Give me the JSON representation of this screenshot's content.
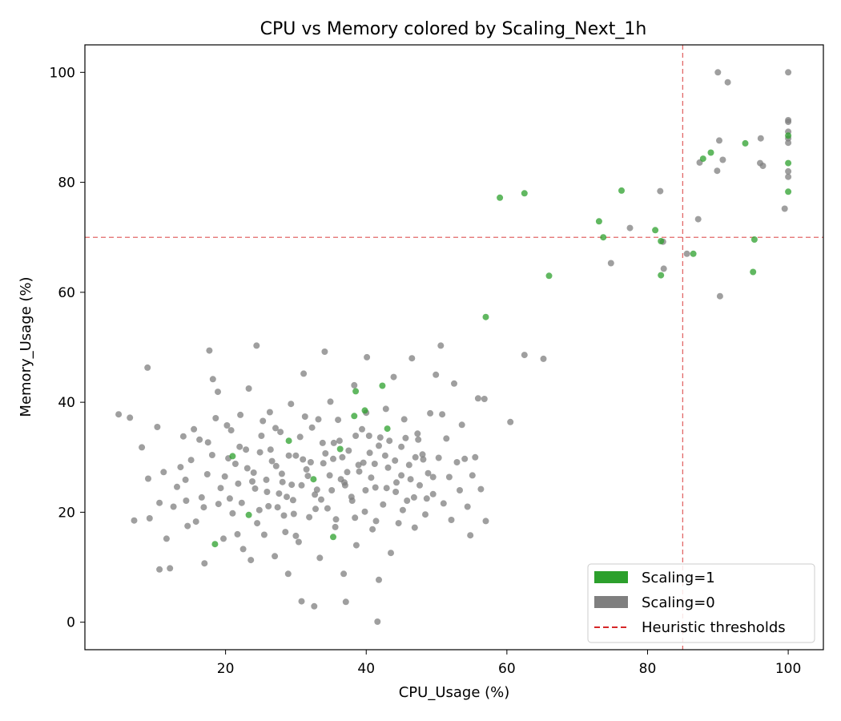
{
  "chart_data": {
    "type": "scatter",
    "title": "CPU vs Memory colored by Scaling_Next_1h",
    "xlabel": "CPU_Usage (%)",
    "ylabel": "Memory_Usage (%)",
    "xlim": [
      0,
      105
    ],
    "ylim": [
      -5,
      105
    ],
    "x_ticks": [
      20,
      40,
      60,
      80,
      100
    ],
    "y_ticks": [
      0,
      20,
      40,
      60,
      80,
      100
    ],
    "grid": false,
    "legend_position": "lower-right",
    "thresholds": {
      "cpu": 85,
      "memory": 70,
      "color": "#d62728",
      "style": "dashed"
    },
    "series": [
      {
        "name": "Scaling=1",
        "color": "#2ca02c",
        "points": [
          [
            59.0,
            77.2
          ],
          [
            62.5,
            78.0
          ],
          [
            76.3,
            78.5
          ],
          [
            73.1,
            72.9
          ],
          [
            73.7,
            70.0
          ],
          [
            81.1,
            71.3
          ],
          [
            81.9,
            69.3
          ],
          [
            66.0,
            63.0
          ],
          [
            81.9,
            63.1
          ],
          [
            86.5,
            67.0
          ],
          [
            57.0,
            55.5
          ],
          [
            87.9,
            84.3
          ],
          [
            89.0,
            85.4
          ],
          [
            93.9,
            87.1
          ],
          [
            95.0,
            63.7
          ],
          [
            95.2,
            69.6
          ],
          [
            100,
            88.5
          ],
          [
            100,
            83.5
          ],
          [
            100,
            78.3
          ],
          [
            39.8,
            38.5
          ],
          [
            42.3,
            43.0
          ],
          [
            43.0,
            35.2
          ],
          [
            38.5,
            42.0
          ],
          [
            29.0,
            33.0
          ],
          [
            21.0,
            30.2
          ],
          [
            38.3,
            37.5
          ],
          [
            36.3,
            31.5
          ],
          [
            32.5,
            26.0
          ],
          [
            23.3,
            19.5
          ],
          [
            18.5,
            14.2
          ],
          [
            35.3,
            15.5
          ]
        ]
      },
      {
        "name": "Scaling=0",
        "color": "#7f7f7f",
        "points": [
          [
            90.0,
            100.0
          ],
          [
            91.4,
            98.2
          ],
          [
            100,
            100.0
          ],
          [
            100,
            91.3
          ],
          [
            100,
            91.0
          ],
          [
            100,
            89.2
          ],
          [
            100,
            88.0
          ],
          [
            100,
            87.2
          ],
          [
            100,
            82.0
          ],
          [
            100,
            81.0
          ],
          [
            90.2,
            87.6
          ],
          [
            90.7,
            84.1
          ],
          [
            87.4,
            83.6
          ],
          [
            96.1,
            88.0
          ],
          [
            96.0,
            83.5
          ],
          [
            96.4,
            83.0
          ],
          [
            89.9,
            82.1
          ],
          [
            99.5,
            75.2
          ],
          [
            81.8,
            78.4
          ],
          [
            87.2,
            73.3
          ],
          [
            77.5,
            71.7
          ],
          [
            82.2,
            69.2
          ],
          [
            74.8,
            65.3
          ],
          [
            82.3,
            64.3
          ],
          [
            85.6,
            67.0
          ],
          [
            90.3,
            59.3
          ],
          [
            62.5,
            48.6
          ],
          [
            65.2,
            47.9
          ],
          [
            60.5,
            36.4
          ],
          [
            56.8,
            40.6
          ],
          [
            4.8,
            37.8
          ],
          [
            6.4,
            37.2
          ],
          [
            7.0,
            18.5
          ],
          [
            8.1,
            31.8
          ],
          [
            8.9,
            46.3
          ],
          [
            9.0,
            26.1
          ],
          [
            9.2,
            18.9
          ],
          [
            10.3,
            35.5
          ],
          [
            10.6,
            9.6
          ],
          [
            10.6,
            21.7
          ],
          [
            11.2,
            27.3
          ],
          [
            11.6,
            15.2
          ],
          [
            12.1,
            9.8
          ],
          [
            12.6,
            21.0
          ],
          [
            13.1,
            24.6
          ],
          [
            13.6,
            28.2
          ],
          [
            14.0,
            33.8
          ],
          [
            14.4,
            22.1
          ],
          [
            14.6,
            17.5
          ],
          [
            15.1,
            29.5
          ],
          [
            15.8,
            18.3
          ],
          [
            16.3,
            33.2
          ],
          [
            16.6,
            22.7
          ],
          [
            17.0,
            10.7
          ],
          [
            17.4,
            26.9
          ],
          [
            17.7,
            49.4
          ],
          [
            18.2,
            44.2
          ],
          [
            18.6,
            37.1
          ],
          [
            18.9,
            41.9
          ],
          [
            19.3,
            24.4
          ],
          [
            19.7,
            15.2
          ],
          [
            20.2,
            35.8
          ],
          [
            20.6,
            22.5
          ],
          [
            21.0,
            19.8
          ],
          [
            21.4,
            28.8
          ],
          [
            21.8,
            25.2
          ],
          [
            22.1,
            37.7
          ],
          [
            22.5,
            13.3
          ],
          [
            22.9,
            31.4
          ],
          [
            23.3,
            42.5
          ],
          [
            23.6,
            11.3
          ],
          [
            24.0,
            27.2
          ],
          [
            24.4,
            50.3
          ],
          [
            24.8,
            20.4
          ],
          [
            25.1,
            33.9
          ],
          [
            25.5,
            15.9
          ],
          [
            25.9,
            23.7
          ],
          [
            26.3,
            38.2
          ],
          [
            26.6,
            29.3
          ],
          [
            27.0,
            12.0
          ],
          [
            27.4,
            20.9
          ],
          [
            27.8,
            34.6
          ],
          [
            28.1,
            25.5
          ],
          [
            28.5,
            16.4
          ],
          [
            28.9,
            8.8
          ],
          [
            29.3,
            39.7
          ],
          [
            29.6,
            22.2
          ],
          [
            30.0,
            30.3
          ],
          [
            30.4,
            14.6
          ],
          [
            30.8,
            3.8
          ],
          [
            31.1,
            45.2
          ],
          [
            31.5,
            27.8
          ],
          [
            31.9,
            19.1
          ],
          [
            32.3,
            35.4
          ],
          [
            32.6,
            2.9
          ],
          [
            33.0,
            24.1
          ],
          [
            33.4,
            11.7
          ],
          [
            33.8,
            32.6
          ],
          [
            34.1,
            49.2
          ],
          [
            34.5,
            20.7
          ],
          [
            34.9,
            40.1
          ],
          [
            35.3,
            29.7
          ],
          [
            35.6,
            17.3
          ],
          [
            36.0,
            36.8
          ],
          [
            36.4,
            26.0
          ],
          [
            36.8,
            8.8
          ],
          [
            37.1,
            3.7
          ],
          [
            37.5,
            31.2
          ],
          [
            37.9,
            22.8
          ],
          [
            38.3,
            43.1
          ],
          [
            38.6,
            14.0
          ],
          [
            39.0,
            27.4
          ],
          [
            39.4,
            35.1
          ],
          [
            39.8,
            20.1
          ],
          [
            40.1,
            48.2
          ],
          [
            40.5,
            30.8
          ],
          [
            40.9,
            16.9
          ],
          [
            41.3,
            24.5
          ],
          [
            41.6,
            0.1
          ],
          [
            41.8,
            7.7
          ],
          [
            42.0,
            33.6
          ],
          [
            42.4,
            21.4
          ],
          [
            42.8,
            38.8
          ],
          [
            43.1,
            28.1
          ],
          [
            43.5,
            12.6
          ],
          [
            43.9,
            44.6
          ],
          [
            44.3,
            25.4
          ],
          [
            44.6,
            18.0
          ],
          [
            45.0,
            31.9
          ],
          [
            45.4,
            36.9
          ],
          [
            45.8,
            22.1
          ],
          [
            46.1,
            28.6
          ],
          [
            46.5,
            48.0
          ],
          [
            46.9,
            17.2
          ],
          [
            47.3,
            34.3
          ],
          [
            47.6,
            24.9
          ],
          [
            48.0,
            30.5
          ],
          [
            48.4,
            19.6
          ],
          [
            48.8,
            27.1
          ],
          [
            49.1,
            38.0
          ],
          [
            49.5,
            23.3
          ],
          [
            49.9,
            45.0
          ],
          [
            50.3,
            29.9
          ],
          [
            50.6,
            50.3
          ],
          [
            51.0,
            21.6
          ],
          [
            51.4,
            33.4
          ],
          [
            51.8,
            26.4
          ],
          [
            52.1,
            18.6
          ],
          [
            52.5,
            43.4
          ],
          [
            52.9,
            29.1
          ],
          [
            53.3,
            24.0
          ],
          [
            53.6,
            35.9
          ],
          [
            54.0,
            29.7
          ],
          [
            54.4,
            21.0
          ],
          [
            54.8,
            15.8
          ],
          [
            55.1,
            26.7
          ],
          [
            55.5,
            30.0
          ],
          [
            55.9,
            40.7
          ],
          [
            56.3,
            24.2
          ],
          [
            57.0,
            18.4
          ],
          [
            14.3,
            25.9
          ],
          [
            15.5,
            35.1
          ],
          [
            16.9,
            20.9
          ],
          [
            18.1,
            30.4
          ],
          [
            19.9,
            26.5
          ],
          [
            20.8,
            34.9
          ],
          [
            22.3,
            21.7
          ],
          [
            23.8,
            25.6
          ],
          [
            24.9,
            30.9
          ],
          [
            26.1,
            21.1
          ],
          [
            27.2,
            28.4
          ],
          [
            28.3,
            19.4
          ],
          [
            29.4,
            25.0
          ],
          [
            30.6,
            33.7
          ],
          [
            31.7,
            26.6
          ],
          [
            32.8,
            20.6
          ],
          [
            33.9,
            28.9
          ],
          [
            35.1,
            24.0
          ],
          [
            36.2,
            33.0
          ],
          [
            37.3,
            27.3
          ],
          [
            38.4,
            19.0
          ],
          [
            39.6,
            29.0
          ],
          [
            40.7,
            26.3
          ],
          [
            41.8,
            32.1
          ],
          [
            42.9,
            24.4
          ],
          [
            44.1,
            29.4
          ],
          [
            45.2,
            20.4
          ],
          [
            46.3,
            26.0
          ],
          [
            47.4,
            33.2
          ],
          [
            48.6,
            22.5
          ],
          [
            17.5,
            32.7
          ],
          [
            19.0,
            21.5
          ],
          [
            20.4,
            29.8
          ],
          [
            21.7,
            16.0
          ],
          [
            23.1,
            28.0
          ],
          [
            24.5,
            18.0
          ],
          [
            25.8,
            25.9
          ],
          [
            27.1,
            35.3
          ],
          [
            28.7,
            22.8
          ],
          [
            30.0,
            15.7
          ],
          [
            31.3,
            37.4
          ],
          [
            32.7,
            23.2
          ],
          [
            34.2,
            30.7
          ],
          [
            35.7,
            18.7
          ],
          [
            37.0,
            24.9
          ],
          [
            38.5,
            33.9
          ],
          [
            39.9,
            24.0
          ],
          [
            41.4,
            18.4
          ],
          [
            42.7,
            30.3
          ],
          [
            44.2,
            23.7
          ],
          [
            45.6,
            33.5
          ],
          [
            46.8,
            22.7
          ],
          [
            48.1,
            29.6
          ],
          [
            49.5,
            26.4
          ],
          [
            50.8,
            37.8
          ],
          [
            26.4,
            31.4
          ],
          [
            28.0,
            27.0
          ],
          [
            29.7,
            19.7
          ],
          [
            31.0,
            29.6
          ],
          [
            33.2,
            36.9
          ],
          [
            34.8,
            26.7
          ],
          [
            36.6,
            30.0
          ],
          [
            38.0,
            22.1
          ],
          [
            40.0,
            38.1
          ],
          [
            41.2,
            28.8
          ],
          [
            43.3,
            33.0
          ],
          [
            45.0,
            26.7
          ],
          [
            47.0,
            30.0
          ],
          [
            22.0,
            31.9
          ],
          [
            24.2,
            24.3
          ],
          [
            25.3,
            36.6
          ],
          [
            27.6,
            23.4
          ],
          [
            29.0,
            30.3
          ],
          [
            30.8,
            24.9
          ],
          [
            32.1,
            29.1
          ],
          [
            33.6,
            22.3
          ],
          [
            35.4,
            32.6
          ],
          [
            36.9,
            25.4
          ],
          [
            38.9,
            28.6
          ],
          [
            40.4,
            33.9
          ]
        ]
      }
    ]
  },
  "legend": {
    "items": [
      {
        "label": "Scaling=1",
        "kind": "patch",
        "color": "#2ca02c"
      },
      {
        "label": "Scaling=0",
        "kind": "patch",
        "color": "#7f7f7f"
      },
      {
        "label": "Heuristic thresholds",
        "kind": "dashed-line",
        "color": "#d62728"
      }
    ]
  }
}
